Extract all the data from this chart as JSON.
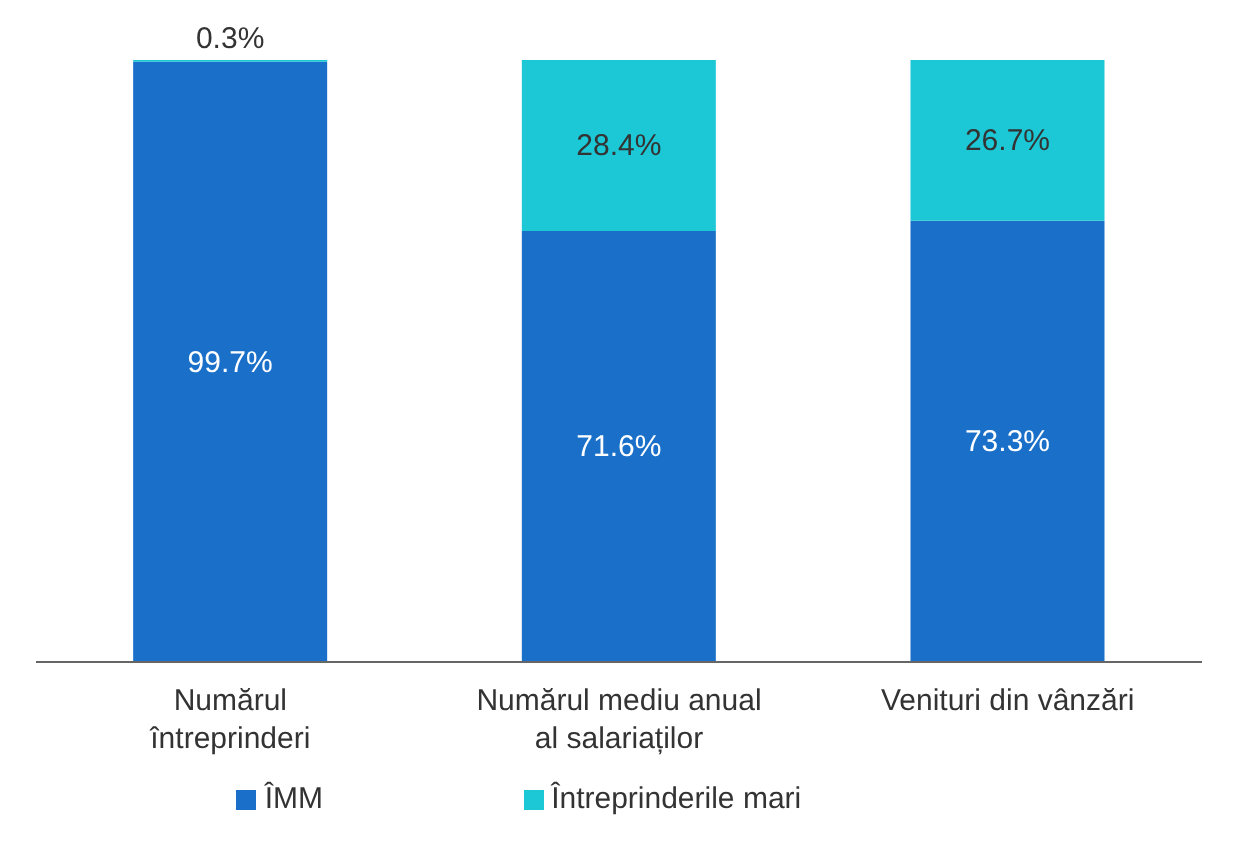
{
  "chart_data": {
    "type": "bar",
    "stacked": true,
    "categories": [
      "Numărul întreprinderi",
      "Numărul mediu anual al salariaților",
      "Venituri din vânzări"
    ],
    "series": [
      {
        "name": "ÎMM",
        "color": "#1a6fc9",
        "values": [
          99.7,
          71.6,
          73.3
        ],
        "value_labels": [
          "99.7%",
          "71.6%",
          "73.3%"
        ]
      },
      {
        "name": "Întreprinderile mari",
        "color": "#1cc7d6",
        "values": [
          0.3,
          28.4,
          26.7
        ],
        "value_labels": [
          "0.3%",
          "28.4%",
          "26.7%"
        ]
      }
    ],
    "legend": "bottom",
    "grid": false
  }
}
